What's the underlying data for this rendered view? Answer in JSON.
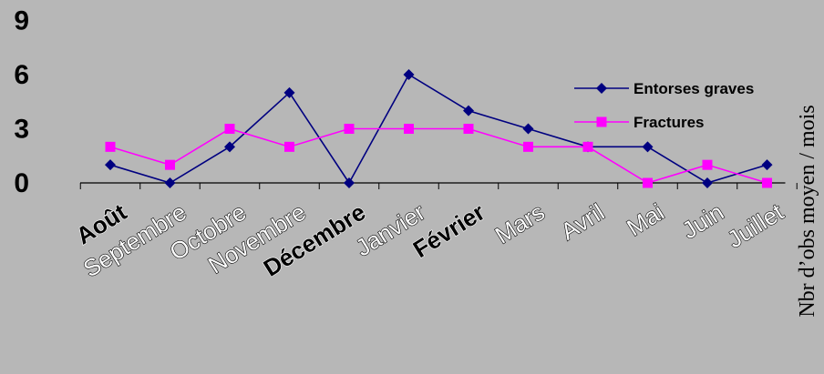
{
  "chart_data": {
    "type": "line",
    "categories": [
      "Août",
      "Septembre",
      "Octobre",
      "Novembre",
      "Décembre",
      "Janvier",
      "Février",
      "Mars",
      "Avril",
      "Mai",
      "Juin",
      "Juillet"
    ],
    "bold_categories": [
      "Août",
      "Décembre",
      "Février"
    ],
    "series": [
      {
        "name": "Entorses graves",
        "values": [
          1,
          0,
          2,
          5,
          0,
          6,
          4,
          3,
          2,
          2,
          0,
          1
        ],
        "color": "#000080",
        "marker": "diamond"
      },
      {
        "name": "Fractures",
        "values": [
          2,
          1,
          3,
          2,
          3,
          3,
          3,
          2,
          2,
          0,
          1,
          0
        ],
        "color": "#ff00ff",
        "marker": "square"
      }
    ],
    "yticks": [
      0,
      3,
      6,
      9
    ],
    "ylim": [
      0,
      9
    ],
    "ylabel": "Nbr d’obs moyen / mois",
    "legend_position": "right",
    "grid": false
  }
}
